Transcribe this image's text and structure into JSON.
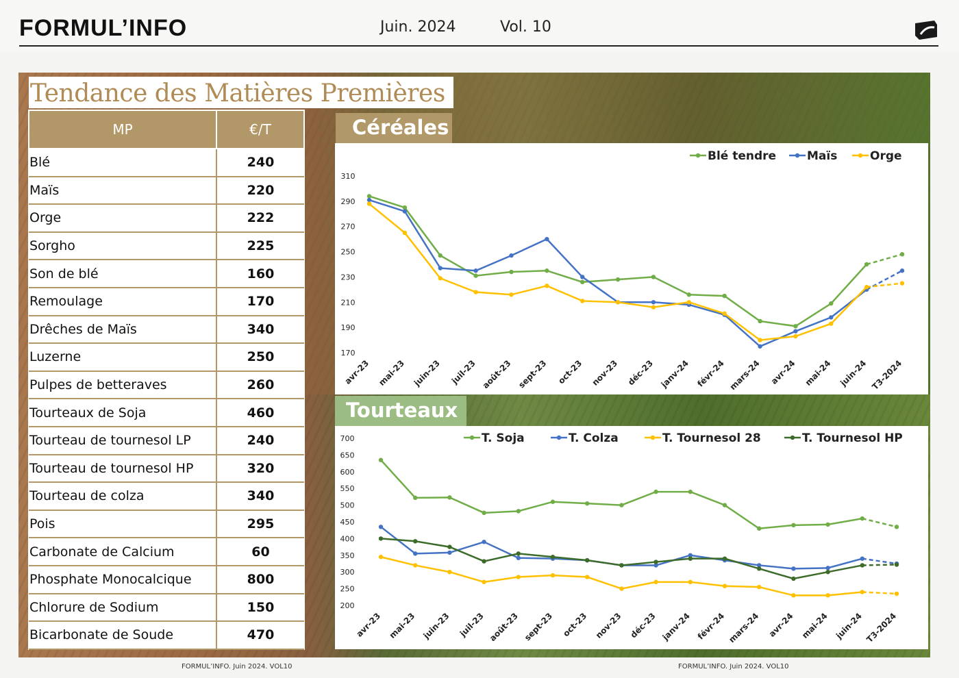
{
  "header": {
    "brand": "FORMUL’INFO",
    "date": "Juin. 2024",
    "volume": "Vol. 10"
  },
  "section_title": "Tendance des Matières Premières",
  "table": {
    "col_mp": "MP",
    "col_price": "€/T",
    "rows": [
      {
        "name": "Blé",
        "value": "240"
      },
      {
        "name": "Maïs",
        "value": "220"
      },
      {
        "name": "Orge",
        "value": "222"
      },
      {
        "name": "Sorgho",
        "value": "225"
      },
      {
        "name": "Son de blé",
        "value": "160"
      },
      {
        "name": "Remoulage",
        "value": "170"
      },
      {
        "name": "Drêches de Maïs",
        "value": "340"
      },
      {
        "name": "Luzerne",
        "value": "250"
      },
      {
        "name": "Pulpes de betteraves",
        "value": "260"
      },
      {
        "name": "Tourteaux de Soja",
        "value": "460"
      },
      {
        "name": "Tourteau de tournesol LP",
        "value": "240"
      },
      {
        "name": "Tourteau de tournesol HP",
        "value": "320"
      },
      {
        "name": "Tourteau de colza",
        "value": "340"
      },
      {
        "name": "Pois",
        "value": "295"
      },
      {
        "name": "Carbonate de Calcium",
        "value": "60"
      },
      {
        "name": "Phosphate Monocalcique",
        "value": "800"
      },
      {
        "name": "Chlorure de Sodium",
        "value": "150"
      },
      {
        "name": "Bicarbonate de Soude",
        "value": "470"
      }
    ]
  },
  "chart_data": [
    {
      "type": "line",
      "title": "Céréales",
      "categories": [
        "avr-23",
        "mai-23",
        "juin-23",
        "juil-23",
        "août-23",
        "sept-23",
        "oct-23",
        "nov-23",
        "déc-23",
        "janv-24",
        "févr-24",
        "mars-24",
        "avr-24",
        "mai-24",
        "juin-24",
        "T3-2024"
      ],
      "yticks": [
        170,
        190,
        210,
        230,
        250,
        270,
        290,
        310
      ],
      "ylim": [
        170,
        310
      ],
      "grid": false,
      "legend": "top-right",
      "last_point_dashed": true,
      "series": [
        {
          "name": "Blé tendre",
          "color": "#70ad47",
          "values": [
            294,
            285,
            247,
            231,
            234,
            235,
            226,
            228,
            230,
            216,
            215,
            195,
            191,
            209,
            240,
            248
          ]
        },
        {
          "name": "Maïs",
          "color": "#4472c4",
          "values": [
            291,
            282,
            237,
            235,
            247,
            260,
            230,
            210,
            210,
            208,
            200,
            175,
            187,
            198,
            220,
            235
          ]
        },
        {
          "name": "Orge",
          "color": "#ffc000",
          "values": [
            288,
            265,
            229,
            218,
            216,
            223,
            211,
            210,
            206,
            210,
            201,
            180,
            183,
            193,
            222,
            225
          ]
        }
      ]
    },
    {
      "type": "line",
      "title": "Tourteaux",
      "categories": [
        "avr-23",
        "mai-23",
        "juin-23",
        "juil-23",
        "août-23",
        "sept-23",
        "oct-23",
        "nov-23",
        "déc-23",
        "janv-24",
        "févr-24",
        "mars-24",
        "avr-24",
        "mai-24",
        "juin-24",
        "T3-2024"
      ],
      "yticks": [
        200,
        250,
        300,
        350,
        400,
        450,
        500,
        550,
        600,
        650,
        700
      ],
      "ylim": [
        200,
        700
      ],
      "grid": false,
      "legend": "top",
      "last_point_dashed": true,
      "series": [
        {
          "name": "T. Soja",
          "color": "#70ad47",
          "values": [
            635,
            522,
            523,
            477,
            482,
            510,
            505,
            500,
            540,
            540,
            500,
            430,
            440,
            442,
            460,
            435
          ]
        },
        {
          "name": "T. Colza",
          "color": "#4472c4",
          "values": [
            435,
            355,
            358,
            390,
            342,
            340,
            335,
            320,
            320,
            350,
            335,
            320,
            310,
            312,
            340,
            325
          ]
        },
        {
          "name": "T. Tournesol 28",
          "color": "#ffc000",
          "values": [
            345,
            320,
            300,
            270,
            285,
            290,
            285,
            250,
            270,
            270,
            258,
            255,
            230,
            230,
            240,
            235
          ]
        },
        {
          "name": "T. Tournesol HP",
          "color": "#3d6b2a",
          "values": [
            400,
            392,
            375,
            332,
            355,
            345,
            335,
            320,
            330,
            340,
            340,
            310,
            280,
            300,
            320,
            322
          ]
        }
      ]
    }
  ],
  "footer": {
    "left": "FORMUL’INFO. Juin 2024. VOL10",
    "right": "FORMUL’INFO. Juin 2024. VOL10"
  }
}
